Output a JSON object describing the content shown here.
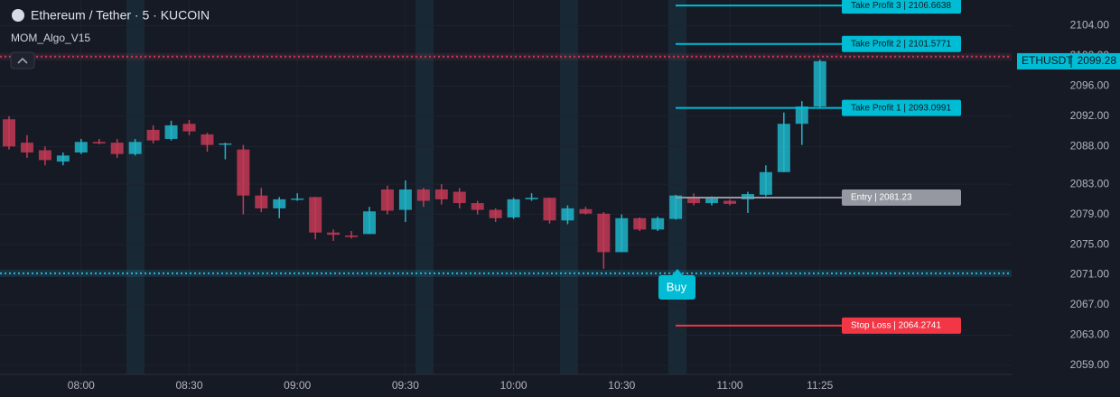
{
  "chart_data": {
    "type": "candlestick",
    "title": "Ethereum / Tether · 5 · KUCOIN",
    "indicator": "MOM_Algo_V15",
    "categories": [
      null,
      null,
      null,
      null,
      "08:00",
      null,
      null,
      null,
      null,
      null,
      "08:30",
      null,
      null,
      null,
      null,
      null,
      "09:00",
      null,
      null,
      null,
      null,
      null,
      "09:30",
      null,
      null,
      null,
      null,
      null,
      "10:00",
      null,
      null,
      null,
      null,
      null,
      "10:30",
      null,
      null,
      null,
      null,
      null,
      "11:00",
      null,
      null,
      null,
      null,
      "11:25"
    ],
    "open": [
      2091.6,
      2088.5,
      2087.5,
      2086.0,
      2087.2,
      2088.6,
      2088.5,
      2087.0,
      2090.2,
      2089.0,
      2091.0,
      2089.6,
      2088.3,
      2087.6,
      2081.5,
      2079.8,
      2081.0,
      2081.3,
      2076.6,
      2076.2,
      2076.4,
      2082.3,
      2079.6,
      2082.3,
      2082.3,
      2082.0,
      2080.5,
      2079.6,
      2078.6,
      2081.0,
      2081.2,
      2078.2,
      2079.7,
      2079.1,
      2074.0,
      2078.5,
      2077.0,
      2078.4,
      2081.3,
      2080.5,
      2080.8,
      2081.0,
      2081.6,
      2084.6,
      2091.0,
      2093.3
    ],
    "high": [
      2092.0,
      2089.5,
      2088.0,
      2087.2,
      2089.0,
      2089.0,
      2089.0,
      2089.0,
      2090.8,
      2091.4,
      2091.5,
      2089.8,
      2088.5,
      2088.2,
      2082.5,
      2081.3,
      2081.8,
      2081.3,
      2077.0,
      2076.8,
      2080.0,
      2082.8,
      2083.5,
      2082.5,
      2083.0,
      2082.5,
      2080.8,
      2079.8,
      2081.2,
      2081.8,
      2081.2,
      2080.2,
      2080.0,
      2079.3,
      2079.0,
      2078.6,
      2078.7,
      2081.6,
      2081.8,
      2081.4,
      2081.0,
      2082.0,
      2085.5,
      2092.5,
      2094.0,
      2099.5
    ],
    "low": [
      2087.6,
      2086.5,
      2085.5,
      2085.5,
      2087.0,
      2088.3,
      2086.5,
      2086.8,
      2088.4,
      2088.8,
      2089.5,
      2087.3,
      2086.3,
      2079.0,
      2079.3,
      2078.5,
      2080.8,
      2075.7,
      2075.5,
      2075.8,
      2076.4,
      2079.0,
      2078.0,
      2080.0,
      2080.3,
      2079.8,
      2079.0,
      2078.0,
      2078.4,
      2080.8,
      2077.8,
      2077.7,
      2079.0,
      2071.8,
      2074.0,
      2076.8,
      2076.8,
      2078.3,
      2080.2,
      2080.2,
      2080.2,
      2079.2,
      2081.4,
      2084.6,
      2088.2,
      2093.0
    ],
    "close": [
      2088.0,
      2087.2,
      2086.2,
      2086.8,
      2088.6,
      2088.4,
      2087.0,
      2088.6,
      2088.8,
      2090.8,
      2090.0,
      2088.2,
      2088.4,
      2081.5,
      2079.8,
      2081.0,
      2081.1,
      2076.6,
      2076.3,
      2076.0,
      2079.4,
      2079.5,
      2082.3,
      2080.8,
      2081.0,
      2080.5,
      2079.6,
      2078.5,
      2081.0,
      2081.2,
      2078.2,
      2079.8,
      2079.1,
      2074.0,
      2078.5,
      2077.0,
      2078.5,
      2081.5,
      2080.5,
      2081.3,
      2080.4,
      2081.7,
      2084.6,
      2091.0,
      2093.3,
      2099.3
    ],
    "up_color": "#1fb5c9",
    "down_color": "#c43a56",
    "ylim": [
      2057.8,
      2107.4
    ],
    "yticks": [
      {
        "value": 2059,
        "label": "2059.00"
      },
      {
        "value": 2063,
        "label": "2063.00"
      },
      {
        "value": 2067,
        "label": "2067.00"
      },
      {
        "value": 2071,
        "label": "2071.00"
      },
      {
        "value": 2075,
        "label": "2075.00"
      },
      {
        "value": 2079,
        "label": "2079.00"
      },
      {
        "value": 2083,
        "label": "2083.00"
      },
      {
        "value": 2088,
        "label": "2088.00"
      },
      {
        "value": 2092,
        "label": "2092.00"
      },
      {
        "value": 2096,
        "label": "2096.00"
      },
      {
        "value": 2100,
        "label": "2100.00"
      },
      {
        "value": 2104,
        "label": "2104.00"
      }
    ],
    "grid": true,
    "levels": [
      {
        "label": "Take Profit 3 | 2106.6638",
        "value": 2106.6638,
        "color": "#00bcd4"
      },
      {
        "label": "Take Profit 2 | 2101.5771",
        "value": 2101.5771,
        "color": "#00bcd4"
      },
      {
        "label": "Take Profit 1 | 2093.0991",
        "value": 2093.0991,
        "color": "#00bcd4"
      },
      {
        "label": "Entry | 2081.23",
        "value": 2081.23,
        "color": "#9598a1"
      },
      {
        "label": "Stop Loss | 2064.2741",
        "value": 2064.2741,
        "color": "#f23645"
      }
    ],
    "hlines": [
      {
        "value": 2099.9,
        "color": "#c43a56"
      },
      {
        "value": 2071.2,
        "color": "#22b5d6"
      }
    ],
    "signal": "Buy",
    "price": {
      "symbol": "ETHUSDT",
      "value": "2099.28"
    }
  }
}
